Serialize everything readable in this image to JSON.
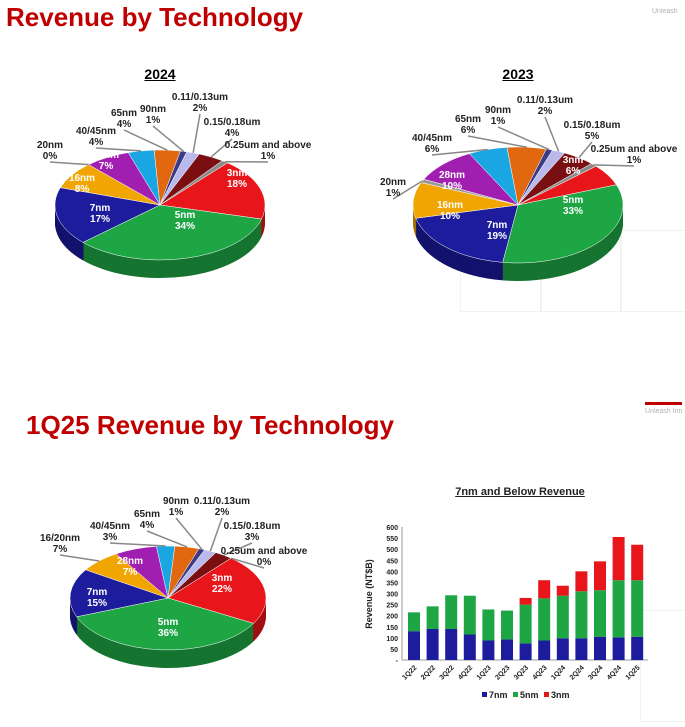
{
  "header": {
    "title": "Revenue by Technology",
    "watermark": "Unleash"
  },
  "section2": {
    "title": "1Q25 Revenue by Technology",
    "watermark": "Unleash Inn"
  },
  "colors": {
    "3nm": "#e8161b",
    "5nm": "#1ea645",
    "7nm": "#1c1c9c",
    "16nm": "#f0a500",
    "20nm": "#9a9a9a",
    "28nm": "#a11fb0",
    "40/45nm": "#19a6e3",
    "65nm": "#e2680f",
    "90nm": "#3b3b88",
    "0.11/0.13um": "#b9b9ec",
    "0.15/0.18um": "#7a0f12",
    "0.25um and above": "#8a8a8a"
  },
  "chart_data": [
    {
      "type": "pie",
      "title": "2024",
      "slices": [
        {
          "name": "3nm",
          "value": 18,
          "label": "18%"
        },
        {
          "name": "5nm",
          "value": 34,
          "label": "34%"
        },
        {
          "name": "7nm",
          "value": 17,
          "label": "17%"
        },
        {
          "name": "16nm",
          "value": 8,
          "label": "8%"
        },
        {
          "name": "20nm",
          "value": 0,
          "label": "0%"
        },
        {
          "name": "28nm",
          "value": 7,
          "label": "7%"
        },
        {
          "name": "40/45nm",
          "value": 4,
          "label": "4%"
        },
        {
          "name": "65nm",
          "value": 4,
          "label": "4%"
        },
        {
          "name": "90nm",
          "value": 1,
          "label": "1%"
        },
        {
          "name": "0.11/0.13um",
          "value": 2,
          "label": "2%"
        },
        {
          "name": "0.15/0.18um",
          "value": 4,
          "label": "4%"
        },
        {
          "name": "0.25um and above",
          "value": 1,
          "label": "1%"
        }
      ]
    },
    {
      "type": "pie",
      "title": "2023",
      "slices": [
        {
          "name": "3nm",
          "value": 6,
          "label": "6%"
        },
        {
          "name": "5nm",
          "value": 33,
          "label": "33%"
        },
        {
          "name": "7nm",
          "value": 19,
          "label": "19%"
        },
        {
          "name": "16nm",
          "value": 10,
          "label": "10%"
        },
        {
          "name": "20nm",
          "value": 1,
          "label": "1%"
        },
        {
          "name": "28nm",
          "value": 10,
          "label": "10%"
        },
        {
          "name": "40/45nm",
          "value": 6,
          "label": "6%"
        },
        {
          "name": "65nm",
          "value": 6,
          "label": "6%"
        },
        {
          "name": "90nm",
          "value": 1,
          "label": "1%"
        },
        {
          "name": "0.11/0.13um",
          "value": 2,
          "label": "2%"
        },
        {
          "name": "0.15/0.18um",
          "value": 5,
          "label": "5%"
        },
        {
          "name": "0.25um and above",
          "value": 1,
          "label": "1%"
        }
      ]
    },
    {
      "type": "pie",
      "title": "1Q25",
      "slices": [
        {
          "name": "3nm",
          "value": 22,
          "label": "22%"
        },
        {
          "name": "5nm",
          "value": 36,
          "label": "36%"
        },
        {
          "name": "7nm",
          "value": 15,
          "label": "15%"
        },
        {
          "name": "16/20nm",
          "value": 7,
          "label": "7%"
        },
        {
          "name": "28nm",
          "value": 7,
          "label": "7%"
        },
        {
          "name": "40/45nm",
          "value": 3,
          "label": "3%"
        },
        {
          "name": "65nm",
          "value": 4,
          "label": "4%"
        },
        {
          "name": "90nm",
          "value": 1,
          "label": "1%"
        },
        {
          "name": "0.11/0.13um",
          "value": 2,
          "label": "2%"
        },
        {
          "name": "0.15/0.18um",
          "value": 3,
          "label": "3%"
        },
        {
          "name": "0.25um and above",
          "value": 0,
          "label": "0%"
        }
      ]
    },
    {
      "type": "bar",
      "stacked": true,
      "title": "7nm and Below Revenue",
      "ylabel": "Revenue (NT$B)",
      "ylim": [
        0,
        600
      ],
      "yticks": [
        "-",
        "50",
        "100",
        "150",
        "200",
        "250",
        "300",
        "350",
        "400",
        "450",
        "500",
        "550",
        "600"
      ],
      "categories": [
        "1Q22",
        "2Q22",
        "3Q22",
        "4Q22",
        "1Q23",
        "2Q23",
        "3Q23",
        "4Q23",
        "1Q24",
        "2Q24",
        "3Q24",
        "4Q24",
        "1Q25"
      ],
      "series": [
        {
          "name": "7nm",
          "color": "#1c1c9c",
          "values": [
            130,
            140,
            140,
            115,
            88,
            93,
            75,
            88,
            98,
            98,
            105,
            102,
            105
          ]
        },
        {
          "name": "5nm",
          "color": "#1ea645",
          "values": [
            85,
            102,
            152,
            175,
            140,
            130,
            175,
            190,
            192,
            212,
            210,
            258,
            255
          ]
        },
        {
          "name": "3nm",
          "color": "#e8161b",
          "values": [
            0,
            0,
            0,
            0,
            0,
            0,
            30,
            82,
            45,
            90,
            130,
            195,
            160
          ]
        }
      ],
      "legend": "bottom"
    }
  ]
}
